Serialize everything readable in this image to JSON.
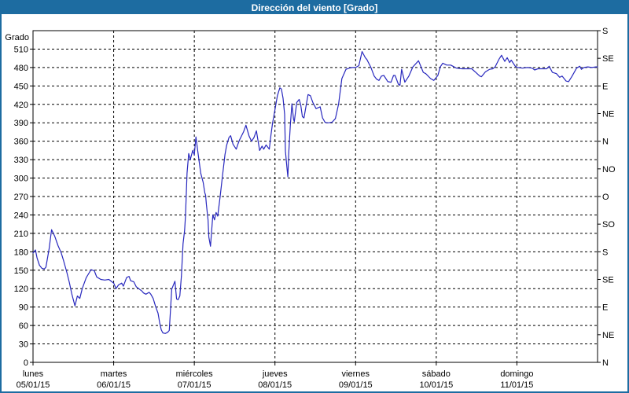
{
  "window": {
    "title": "Dirección del viento [Grado]"
  },
  "colors": {
    "titlebar_bg": "#1d6ca1",
    "window_border": "#1d6ca1",
    "line": "#2828be",
    "grid": "#000000",
    "text": "#000000",
    "background": "#ffffff"
  },
  "chart_data": {
    "type": "line",
    "title": "Dirección del viento [Grado]",
    "ylabel_left": "Grado",
    "ylim": [
      0,
      540
    ],
    "xlim_days": [
      0,
      7
    ],
    "grid": true,
    "y_left_ticks": [
      0,
      30,
      60,
      90,
      120,
      150,
      180,
      210,
      240,
      270,
      300,
      330,
      360,
      390,
      420,
      450,
      480,
      510
    ],
    "y_right_ticks": [
      {
        "v": 0,
        "label": "N"
      },
      {
        "v": 45,
        "label": "NE"
      },
      {
        "v": 90,
        "label": "E"
      },
      {
        "v": 135,
        "label": "SE"
      },
      {
        "v": 180,
        "label": "S"
      },
      {
        "v": 225,
        "label": "SO"
      },
      {
        "v": 270,
        "label": "O"
      },
      {
        "v": 315,
        "label": "NO"
      },
      {
        "v": 360,
        "label": "N"
      },
      {
        "v": 405,
        "label": "NE"
      },
      {
        "v": 450,
        "label": "E"
      },
      {
        "v": 495,
        "label": "SE"
      },
      {
        "v": 540,
        "label": "S"
      }
    ],
    "x_days": [
      {
        "name": "lunes",
        "date": "05/01/15"
      },
      {
        "name": "martes",
        "date": "06/01/15"
      },
      {
        "name": "miércoles",
        "date": "07/01/15"
      },
      {
        "name": "jueves",
        "date": "08/01/15"
      },
      {
        "name": "viernes",
        "date": "09/01/15"
      },
      {
        "name": "sábado",
        "date": "10/01/15"
      },
      {
        "name": "domingo",
        "date": "11/01/15"
      }
    ],
    "series": [
      {
        "name": "Dirección del viento",
        "points": [
          [
            0.0,
            178
          ],
          [
            0.03,
            183
          ],
          [
            0.05,
            170
          ],
          [
            0.08,
            158
          ],
          [
            0.11,
            153
          ],
          [
            0.14,
            152
          ],
          [
            0.16,
            155
          ],
          [
            0.2,
            185
          ],
          [
            0.23,
            216
          ],
          [
            0.27,
            205
          ],
          [
            0.31,
            190
          ],
          [
            0.35,
            178
          ],
          [
            0.38,
            165
          ],
          [
            0.42,
            146
          ],
          [
            0.45,
            130
          ],
          [
            0.48,
            112
          ],
          [
            0.52,
            92
          ],
          [
            0.55,
            108
          ],
          [
            0.58,
            104
          ],
          [
            0.61,
            120
          ],
          [
            0.66,
            138
          ],
          [
            0.72,
            151
          ],
          [
            0.76,
            149
          ],
          [
            0.79,
            139
          ],
          [
            0.84,
            135
          ],
          [
            0.89,
            134
          ],
          [
            0.94,
            135
          ],
          [
            0.98,
            131
          ],
          [
            1.0,
            129
          ],
          [
            1.03,
            120
          ],
          [
            1.06,
            126
          ],
          [
            1.1,
            129
          ],
          [
            1.12,
            124
          ],
          [
            1.16,
            138
          ],
          [
            1.19,
            140
          ],
          [
            1.21,
            133
          ],
          [
            1.25,
            131
          ],
          [
            1.28,
            123
          ],
          [
            1.31,
            120
          ],
          [
            1.35,
            116
          ],
          [
            1.37,
            113
          ],
          [
            1.4,
            111
          ],
          [
            1.44,
            114
          ],
          [
            1.46,
            111
          ],
          [
            1.49,
            104
          ],
          [
            1.52,
            91
          ],
          [
            1.55,
            80
          ],
          [
            1.57,
            65
          ],
          [
            1.59,
            53
          ],
          [
            1.61,
            48
          ],
          [
            1.64,
            47
          ],
          [
            1.67,
            49
          ],
          [
            1.69,
            52
          ],
          [
            1.72,
            119
          ],
          [
            1.75,
            129
          ],
          [
            1.76,
            132
          ],
          [
            1.78,
            103
          ],
          [
            1.8,
            102
          ],
          [
            1.82,
            108
          ],
          [
            1.84,
            140
          ],
          [
            1.86,
            193
          ],
          [
            1.88,
            215
          ],
          [
            1.89,
            238
          ],
          [
            1.91,
            308
          ],
          [
            1.93,
            340
          ],
          [
            1.95,
            330
          ],
          [
            1.98,
            345
          ],
          [
            2.0,
            338
          ],
          [
            2.02,
            367
          ],
          [
            2.04,
            347
          ],
          [
            2.06,
            327
          ],
          [
            2.08,
            308
          ],
          [
            2.11,
            293
          ],
          [
            2.13,
            276
          ],
          [
            2.14,
            272
          ],
          [
            2.15,
            257
          ],
          [
            2.17,
            232
          ],
          [
            2.18,
            204
          ],
          [
            2.2,
            189
          ],
          [
            2.22,
            223
          ],
          [
            2.23,
            240
          ],
          [
            2.25,
            232
          ],
          [
            2.27,
            244
          ],
          [
            2.29,
            238
          ],
          [
            2.32,
            270
          ],
          [
            2.35,
            304
          ],
          [
            2.38,
            338
          ],
          [
            2.4,
            353
          ],
          [
            2.43,
            366
          ],
          [
            2.45,
            369
          ],
          [
            2.48,
            355
          ],
          [
            2.52,
            347
          ],
          [
            2.54,
            355
          ],
          [
            2.56,
            362
          ],
          [
            2.61,
            375
          ],
          [
            2.64,
            386
          ],
          [
            2.68,
            368
          ],
          [
            2.71,
            360
          ],
          [
            2.74,
            366
          ],
          [
            2.77,
            377
          ],
          [
            2.81,
            345
          ],
          [
            2.84,
            352
          ],
          [
            2.86,
            347
          ],
          [
            2.89,
            354
          ],
          [
            2.93,
            347
          ],
          [
            2.95,
            370
          ],
          [
            2.97,
            389
          ],
          [
            2.99,
            404
          ],
          [
            3.03,
            434
          ],
          [
            3.06,
            447
          ],
          [
            3.08,
            445
          ],
          [
            3.1,
            430
          ],
          [
            3.12,
            404
          ],
          [
            3.13,
            344
          ],
          [
            3.15,
            315
          ],
          [
            3.16,
            302
          ],
          [
            3.17,
            340
          ],
          [
            3.19,
            385
          ],
          [
            3.21,
            421
          ],
          [
            3.23,
            396
          ],
          [
            3.24,
            392
          ],
          [
            3.27,
            423
          ],
          [
            3.3,
            428
          ],
          [
            3.32,
            419
          ],
          [
            3.34,
            400
          ],
          [
            3.36,
            398
          ],
          [
            3.41,
            436
          ],
          [
            3.44,
            434
          ],
          [
            3.47,
            423
          ],
          [
            3.51,
            413
          ],
          [
            3.56,
            416
          ],
          [
            3.59,
            398
          ],
          [
            3.62,
            391
          ],
          [
            3.64,
            390
          ],
          [
            3.67,
            390
          ],
          [
            3.71,
            391
          ],
          [
            3.75,
            397
          ],
          [
            3.79,
            421
          ],
          [
            3.83,
            462
          ],
          [
            3.88,
            477
          ],
          [
            3.92,
            479
          ],
          [
            3.96,
            480
          ],
          [
            4.0,
            480
          ],
          [
            4.04,
            483
          ],
          [
            4.08,
            506
          ],
          [
            4.12,
            496
          ],
          [
            4.14,
            493
          ],
          [
            4.19,
            480
          ],
          [
            4.23,
            466
          ],
          [
            4.26,
            461
          ],
          [
            4.29,
            459
          ],
          [
            4.32,
            466
          ],
          [
            4.35,
            467
          ],
          [
            4.4,
            457
          ],
          [
            4.44,
            456
          ],
          [
            4.47,
            467
          ],
          [
            4.49,
            467
          ],
          [
            4.53,
            453
          ],
          [
            4.55,
            451
          ],
          [
            4.57,
            477
          ],
          [
            4.61,
            456
          ],
          [
            4.66,
            466
          ],
          [
            4.71,
            481
          ],
          [
            4.78,
            491
          ],
          [
            4.84,
            472
          ],
          [
            4.87,
            470
          ],
          [
            4.93,
            462
          ],
          [
            4.97,
            459
          ],
          [
            5.02,
            467
          ],
          [
            5.05,
            481
          ],
          [
            5.08,
            487
          ],
          [
            5.13,
            484
          ],
          [
            5.18,
            484
          ],
          [
            5.25,
            479
          ],
          [
            5.32,
            478
          ],
          [
            5.39,
            478
          ],
          [
            5.44,
            478
          ],
          [
            5.49,
            472
          ],
          [
            5.54,
            466
          ],
          [
            5.56,
            465
          ],
          [
            5.61,
            473
          ],
          [
            5.66,
            477
          ],
          [
            5.7,
            478
          ],
          [
            5.73,
            481
          ],
          [
            5.78,
            494
          ],
          [
            5.81,
            500
          ],
          [
            5.85,
            490
          ],
          [
            5.88,
            496
          ],
          [
            5.91,
            488
          ],
          [
            5.93,
            492
          ],
          [
            5.98,
            482
          ],
          [
            6.01,
            480
          ],
          [
            6.07,
            479
          ],
          [
            6.13,
            480
          ],
          [
            6.19,
            479
          ],
          [
            6.22,
            476
          ],
          [
            6.26,
            478
          ],
          [
            6.32,
            478
          ],
          [
            6.37,
            478
          ],
          [
            6.4,
            482
          ],
          [
            6.44,
            472
          ],
          [
            6.49,
            470
          ],
          [
            6.53,
            464
          ],
          [
            6.56,
            466
          ],
          [
            6.61,
            458
          ],
          [
            6.64,
            457
          ],
          [
            6.68,
            465
          ],
          [
            6.71,
            472
          ],
          [
            6.74,
            479
          ],
          [
            6.78,
            482
          ],
          [
            6.8,
            477
          ],
          [
            6.83,
            480
          ],
          [
            6.88,
            481
          ],
          [
            6.93,
            480
          ],
          [
            6.98,
            481
          ],
          [
            7.0,
            481
          ]
        ]
      }
    ]
  }
}
